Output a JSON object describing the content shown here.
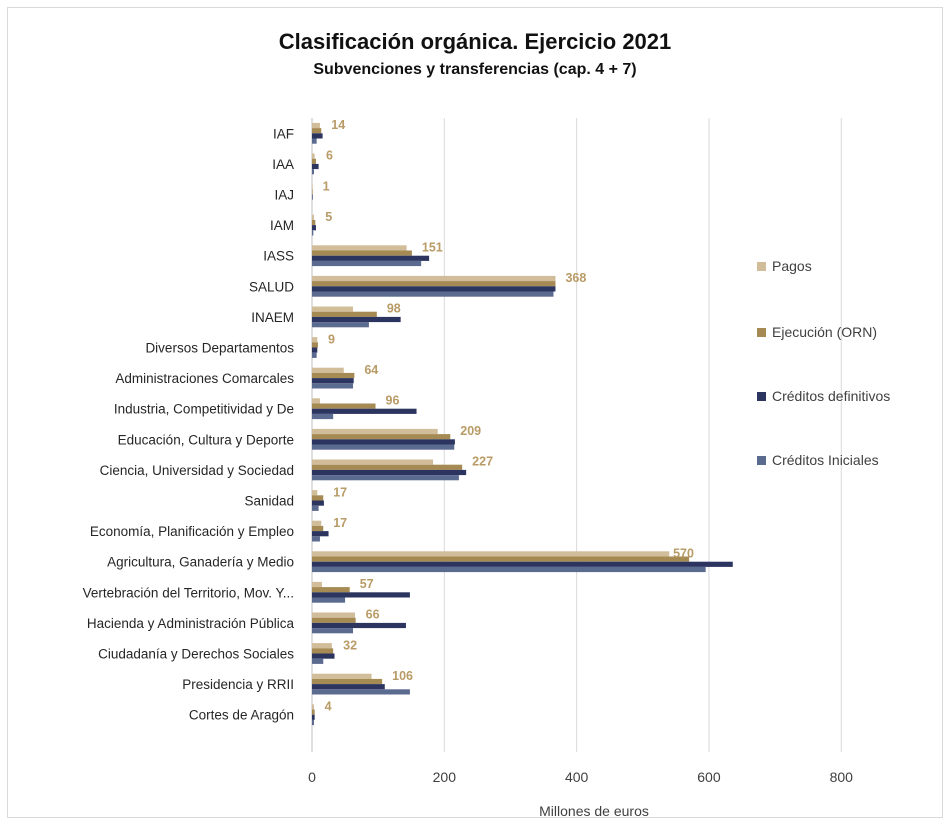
{
  "chart_data": {
    "type": "bar",
    "orientation": "horizontal",
    "title": "Clasificación orgánica. Ejercicio 2021",
    "subtitle": "Subvenciones y transferencias (cap. 4 + 7)",
    "xlabel": "Millones de euros",
    "xlim": [
      0,
      900
    ],
    "xticks": [
      0,
      200,
      400,
      600,
      800
    ],
    "grid": "vertical",
    "legend_position": "right",
    "categories": [
      "IAF",
      "IAA",
      "IAJ",
      "IAM",
      "IASS",
      "SALUD",
      "INAEM",
      "Diversos Departamentos",
      "Administraciones Comarcales",
      "Industria, Competitividad y De",
      "Educación, Cultura y Deporte",
      "Ciencia, Universidad y Sociedad",
      "Sanidad",
      "Economía, Planificación y Empleo",
      "Agricultura, Ganadería y Medio",
      "Vertebración del Territorio, Mov. Y...",
      "Hacienda y Administración Pública",
      "Ciudadanía y Derechos Sociales",
      "Presidencia y RRII",
      "Cortes de Aragón"
    ],
    "series": [
      {
        "name": "Pagos",
        "color": "#d1bd9a",
        "values": [
          12,
          4,
          1,
          3,
          143,
          368,
          62,
          8,
          48,
          12,
          190,
          183,
          8,
          14,
          540,
          15,
          65,
          30,
          90,
          3
        ]
      },
      {
        "name": "Ejecución (ORN)",
        "color": "#a68a54",
        "values": [
          14,
          6,
          1,
          5,
          151,
          368,
          98,
          9,
          64,
          96,
          209,
          227,
          17,
          17,
          570,
          57,
          66,
          32,
          106,
          4
        ]
      },
      {
        "name": "Créditos definitivos",
        "color": "#2b3560",
        "values": [
          16,
          10,
          1,
          6,
          177,
          368,
          134,
          8,
          63,
          158,
          216,
          233,
          18,
          25,
          636,
          148,
          142,
          34,
          110,
          4
        ]
      },
      {
        "name": "Créditos Iniciales",
        "color": "#5b6a8f",
        "values": [
          7,
          3,
          0,
          2,
          165,
          365,
          86,
          7,
          62,
          32,
          215,
          222,
          10,
          12,
          595,
          50,
          62,
          17,
          148,
          3
        ]
      }
    ],
    "data_labels": [
      14,
      6,
      1,
      5,
      151,
      368,
      98,
      9,
      64,
      96,
      209,
      227,
      17,
      17,
      570,
      57,
      66,
      32,
      106,
      4
    ],
    "legend_order": [
      "Pagos",
      "Ejecución (ORN)",
      "Créditos definitivos",
      "Créditos Iniciales"
    ]
  }
}
